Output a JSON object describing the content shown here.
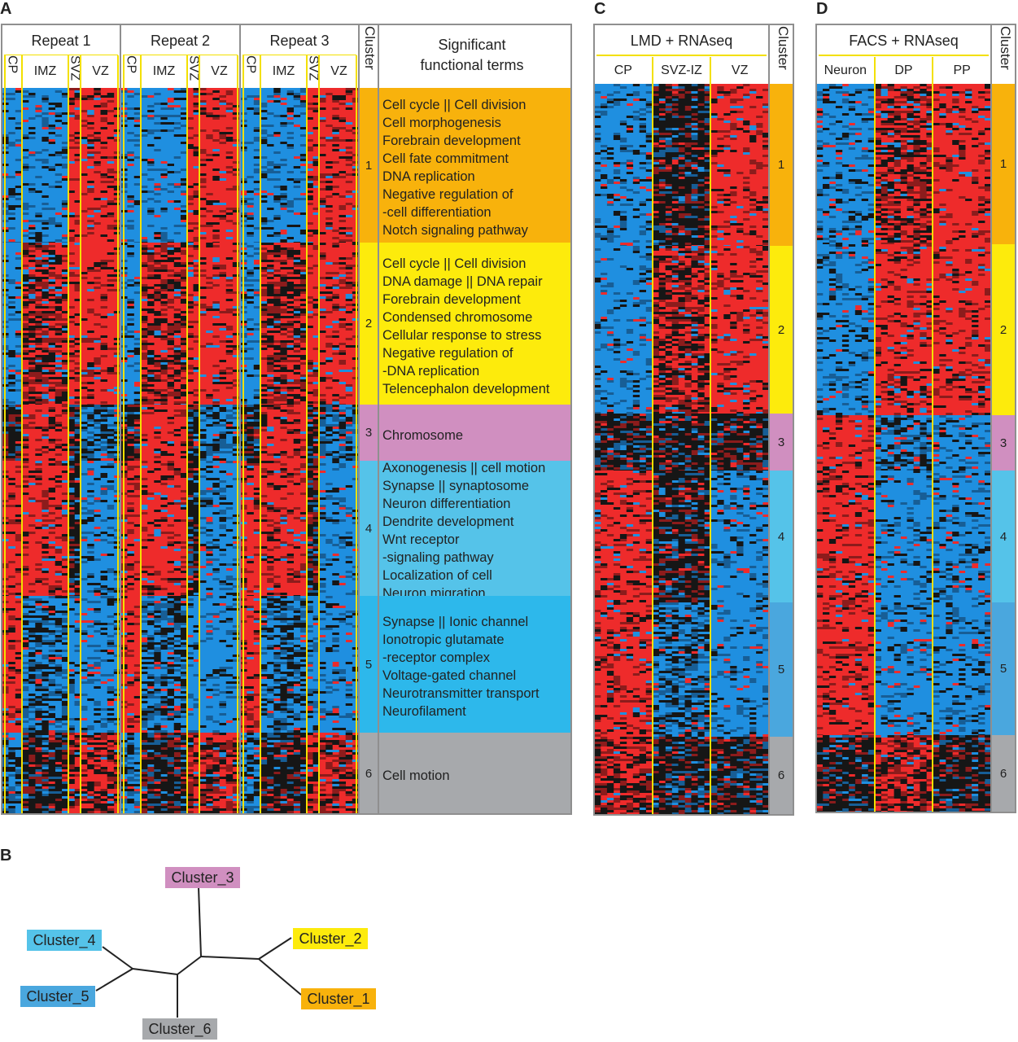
{
  "panel_a": {
    "label": "A",
    "groups": [
      "Repeat 1",
      "Repeat 2",
      "Repeat 3"
    ],
    "subcolumns": [
      "CP",
      "IMZ",
      "SVZ",
      "VZ"
    ],
    "cluster_header": "Cluster",
    "terms_header": "Significant functional terms",
    "clusters": [
      {
        "number": 1,
        "color": "#f8b20c",
        "terms": [
          "Cell cycle || Cell division",
          "Cell morphogenesis",
          "Forebrain development",
          "Cell fate commitment",
          "DNA replication",
          "Negative regulation of",
          "-cell differentiation",
          "Notch signaling pathway"
        ]
      },
      {
        "number": 2,
        "color": "#fdeb0c",
        "terms": [
          "Cell cycle || Cell division",
          "DNA damage || DNA repair",
          "Forebrain development",
          "Condensed chromosome",
          "Cellular response to stress",
          "Negative regulation of",
          "-DNA replication",
          "Telencephalon development"
        ]
      },
      {
        "number": 3,
        "color": "#d08fc0",
        "terms": [
          "Chromosome"
        ]
      },
      {
        "number": 4,
        "color": "#55c3e9",
        "terms": [
          "Axonogenesis || cell motion",
          "Synapse || synaptosome",
          "Neuron differentiation",
          "Dendrite development",
          "Wnt receptor",
          "-signaling pathway",
          "Localization of cell",
          "Neuron migration"
        ]
      },
      {
        "number": 5,
        "color": "#2db8eb",
        "terms": [
          "Synapse || Ionic channel",
          "Ionotropic glutamate",
          "-receptor complex",
          "Voltage-gated channel",
          "Neurotransmitter transport",
          "Neurofilament"
        ]
      },
      {
        "number": 6,
        "color": "#a7a9ac",
        "terms": [
          "Cell motion"
        ]
      }
    ]
  },
  "panel_b": {
    "label": "B",
    "nodes": [
      {
        "label": "Cluster_3",
        "color": "#d08fc0"
      },
      {
        "label": "Cluster_4",
        "color": "#55c3e9"
      },
      {
        "label": "Cluster_2",
        "color": "#fdeb0c"
      },
      {
        "label": "Cluster_5",
        "color": "#4aa7de"
      },
      {
        "label": "Cluster_1",
        "color": "#f8b20c"
      },
      {
        "label": "Cluster_6",
        "color": "#a7a9ac"
      }
    ]
  },
  "panel_c": {
    "label": "C",
    "title": "LMD + RNAseq",
    "subcolumns": [
      "CP",
      "SVZ-IZ",
      "VZ"
    ],
    "cluster_header": "Cluster",
    "clusters": [
      {
        "number": 1,
        "color": "#f8b20c"
      },
      {
        "number": 2,
        "color": "#fdeb0c"
      },
      {
        "number": 3,
        "color": "#d08fc0"
      },
      {
        "number": 4,
        "color": "#55c3e9"
      },
      {
        "number": 5,
        "color": "#4aa7de"
      },
      {
        "number": 6,
        "color": "#a7a9ac"
      }
    ]
  },
  "panel_d": {
    "label": "D",
    "title": "FACS + RNAseq",
    "subcolumns": [
      "Neuron",
      "DP",
      "PP"
    ],
    "cluster_header": "Cluster",
    "clusters": [
      {
        "number": 1,
        "color": "#f8b20c"
      },
      {
        "number": 2,
        "color": "#fdeb0c"
      },
      {
        "number": 3,
        "color": "#d08fc0"
      },
      {
        "number": 4,
        "color": "#55c3e9"
      },
      {
        "number": 5,
        "color": "#4aa7de"
      },
      {
        "number": 6,
        "color": "#a7a9ac"
      }
    ]
  }
}
